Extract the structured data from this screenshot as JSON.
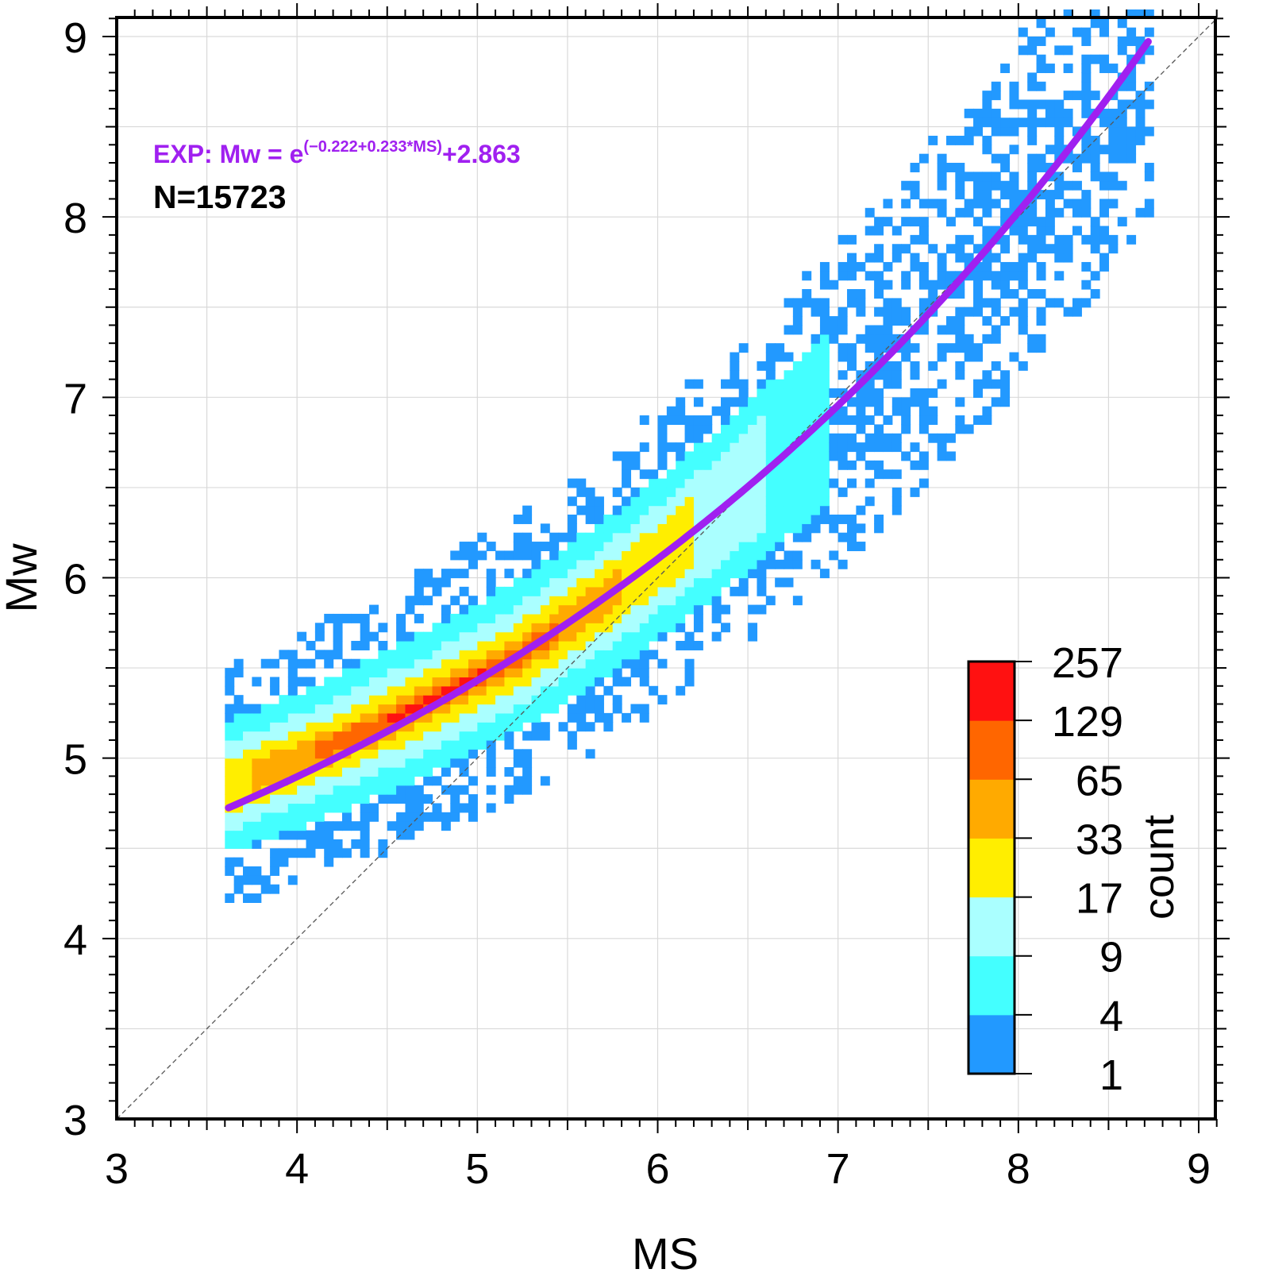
{
  "chart_data": {
    "type": "heatmap",
    "xlabel": "MS",
    "ylabel": "Mw",
    "xlim": [
      3,
      9.1
    ],
    "ylim": [
      3,
      9.1
    ],
    "x_ticks": [
      3,
      4,
      5,
      6,
      7,
      8,
      9
    ],
    "y_ticks": [
      3,
      4,
      5,
      6,
      7,
      8,
      9
    ],
    "x_tick_labels": [
      "3",
      "4",
      "5",
      "6",
      "7",
      "8",
      "9"
    ],
    "y_tick_labels": [
      "3",
      "4",
      "5",
      "6",
      "7",
      "8",
      "9"
    ],
    "grid": true,
    "bin_size": 0.05,
    "annotations": {
      "formula": {
        "prefix": "EXP: Mw = e",
        "exponent": "(−0.222+0.233*MS)",
        "suffix": "+2.863",
        "color": "#a020f0"
      },
      "count_text": "N=15723"
    },
    "reference_line": {
      "label": "",
      "slope": 1,
      "intercept": 0
    },
    "fit": {
      "a": -0.222,
      "b": 0.233,
      "c": 2.863,
      "x_range": [
        3.62,
        8.72
      ],
      "color": "#a020f0"
    },
    "colorbar": {
      "label": "count",
      "placement": "bottom-right",
      "boundaries": [
        1,
        4,
        9,
        17,
        33,
        65,
        129,
        257
      ],
      "tick_labels": [
        "1",
        "4",
        "9",
        "17",
        "33",
        "65",
        "129",
        "257"
      ],
      "colors": [
        "#2299ff",
        "#44ffff",
        "#aaffff",
        "#ffee00",
        "#ffaa00",
        "#ff6600",
        "#ff1111"
      ]
    },
    "band": {
      "description_free": true,
      "level_widths": [
        0.85,
        0.45,
        0.3,
        0.19,
        0.11,
        0.06,
        0.02
      ]
    }
  }
}
